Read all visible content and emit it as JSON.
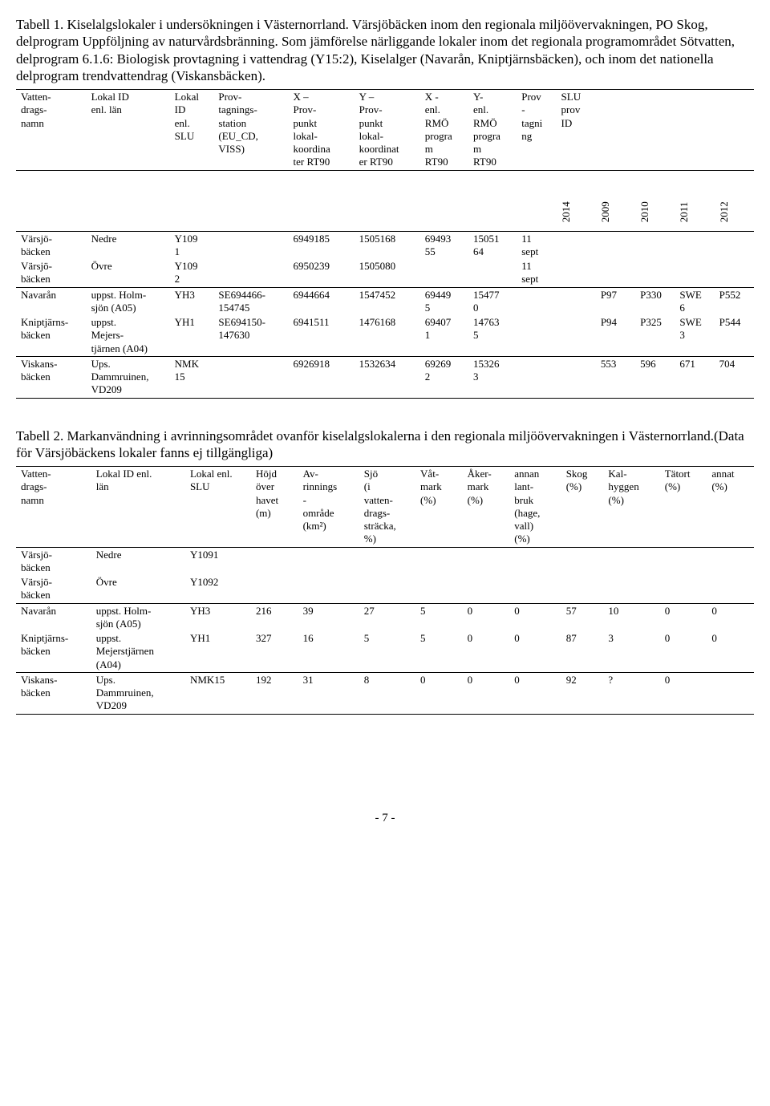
{
  "intro1": "Tabell 1. Kiselalgslokaler i undersökningen i Västernorrland. Värsjöbäcken inom den regionala miljöövervakningen, PO Skog, delprogram Uppföljning av naturvårdsbränning. Som jämförelse närliggande lokaler inom det regionala programområdet Sötvatten, delprogram 6.1.6: Biologisk provtagning i vattendrag (Y15:2), Kiselalger (Navarån, Kniptjärnsbäcken), och inom det nationella delprogram trendvattendrag (Viskansbäcken).",
  "t1": {
    "head": [
      "Vatten-\ndrags-\nnamn",
      "Lokal ID\nenl. län",
      "Lokal\nID\nenl.\nSLU",
      "Prov-\ntagnings-\nstation\n(EU_CD,\nVISS)",
      "X –\nProv-\npunkt\nlokal-\nkoordina\nter RT90",
      "Y –\nProv-\npunkt\nlokal-\nkoordinat\ner RT90",
      "X -\nenl.\nRMÖ\nprogra\nm\nRT90",
      "Y-\nenl.\nRMÖ\nprogra\nm\nRT90",
      "Prov\n-\ntagni\nng",
      "SLU\nprov\nID"
    ],
    "years": [
      "2014",
      "2009",
      "2010",
      "2011",
      "2012"
    ],
    "g1": [
      [
        "Värsjö-\nbäcken",
        "Nedre",
        "Y109\n1",
        "",
        "6949185",
        "1505168",
        "69493\n55",
        "15051\n64",
        "11\nsept",
        ""
      ],
      [
        "Värsjö-\nbäcken",
        "Övre",
        "Y109\n2",
        "",
        "6950239",
        "1505080",
        "",
        "",
        "11\nsept",
        ""
      ]
    ],
    "g2": [
      [
        "Navarån",
        "uppst. Holm-\nsjön (A05)",
        "YH3",
        "SE694466-\n154745",
        "6944664",
        "1547452",
        "69449\n5",
        "15477\n0",
        "",
        "",
        "P97",
        "P330",
        "SWE\n6",
        "P552"
      ],
      [
        "Kniptjärns-\nbäcken",
        "uppst.\nMejers-\ntjärnen (A04)",
        "YH1",
        "SE694150-\n147630",
        "6941511",
        "1476168",
        "69407\n1",
        "14763\n5",
        "",
        "",
        "P94",
        "P325",
        "SWE\n3",
        "P544"
      ],
      [
        "Viskans-\nbäcken",
        "Ups.\nDammruinen,\nVD209",
        "NMK\n15",
        "",
        "6926918",
        "1532634",
        "69269\n2",
        "15326\n3",
        "",
        "",
        "553",
        "596",
        "671",
        "704"
      ]
    ]
  },
  "intro2": "Tabell 2. Markanvändning i avrinningsområdet ovanför kiselalgslokalerna i den regionala miljöövervakningen i Västernorrland.(Data för Värsjöbäckens lokaler fanns ej tillgängliga)",
  "t2": {
    "head": [
      "Vatten-\ndrags-\nnamn",
      "Lokal ID enl.\nlän",
      "Lokal enl.\nSLU",
      "Höjd\növer\nhavet\n(m)",
      "Av-\nrinnings\n-\nområde\n(km²)",
      "Sjö\n(i\nvatten-\ndrags-\nsträcka,\n%)",
      "Våt-\nmark\n(%)",
      "Åker-\nmark\n(%)",
      "annan\nlant-\nbruk\n(hage,\nvall)\n(%)",
      "Skog\n(%)",
      "Kal-\nhyggen\n(%)",
      "Tätort\n(%)",
      "annat\n(%)"
    ],
    "g1": [
      [
        "Värsjö-\nbäcken",
        "Nedre",
        "Y1091",
        "",
        "",
        "",
        "",
        "",
        "",
        "",
        "",
        "",
        ""
      ],
      [
        "Värsjö-\nbäcken",
        "Övre",
        "Y1092",
        "",
        "",
        "",
        "",
        "",
        "",
        "",
        "",
        "",
        ""
      ]
    ],
    "g2": [
      [
        "Navarån",
        "uppst. Holm-\nsjön (A05)",
        "YH3",
        "216",
        "39",
        "27",
        "5",
        "0",
        "0",
        "57",
        "10",
        "0",
        "0"
      ],
      [
        "Kniptjärns-\nbäcken",
        "uppst.\nMejerstjärnen\n(A04)",
        "YH1",
        "327",
        "16",
        "5",
        "5",
        "0",
        "0",
        "87",
        "3",
        "0",
        "0"
      ],
      [
        "Viskans-\nbäcken",
        "Ups.\nDammruinen,\nVD209",
        "NMK15",
        "192",
        "31",
        "8",
        "0",
        "0",
        "0",
        "92",
        "?",
        "0",
        ""
      ]
    ]
  },
  "footer": "- 7 -"
}
